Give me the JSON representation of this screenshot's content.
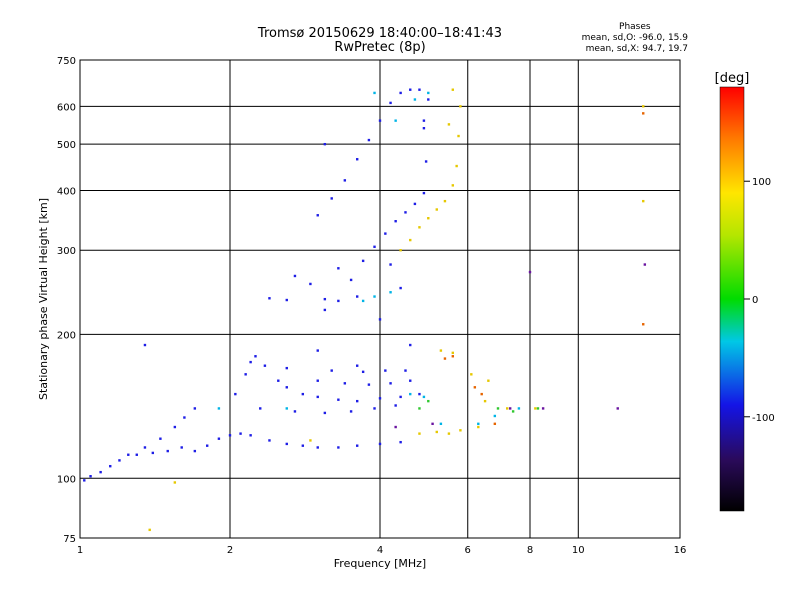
{
  "title": "Tromsø 20150629 18:40:00–18:41:43",
  "subtitle": "RwPretec (8p)",
  "phases": {
    "title": "Phases",
    "line_o": "mean, sd,O: -96.0, 15.9",
    "line_x": "mean, sd,X: 94.7, 19.7"
  },
  "colorbar": {
    "label": "[deg]",
    "ticks": [
      "100",
      "0",
      "-100"
    ],
    "min": -180,
    "max": 180
  },
  "chart_data": {
    "type": "scatter",
    "title": "Tromsø 20150629 18:40:00–18:41:43",
    "subtitle": "RwPretec (8p)",
    "xlabel": "Frequency [MHz]",
    "ylabel": "Stationary phase Virtual Height [km]",
    "xscale": "log",
    "yscale": "log",
    "xlim": [
      1,
      16
    ],
    "ylim": [
      75,
      750
    ],
    "xticks": [
      1,
      2,
      4,
      6,
      8,
      10,
      16
    ],
    "yticks": [
      75,
      100,
      200,
      300,
      400,
      500,
      600,
      750
    ],
    "grid": true,
    "color_scale": "phase [deg]",
    "series": [
      {
        "color": "#1e1ee6",
        "points": [
          [
            1.02,
            99
          ],
          [
            1.05,
            101
          ],
          [
            1.1,
            103
          ],
          [
            1.15,
            106
          ],
          [
            1.2,
            109
          ],
          [
            1.3,
            112
          ],
          [
            1.4,
            113
          ],
          [
            1.5,
            114
          ],
          [
            1.6,
            116
          ],
          [
            1.7,
            114
          ],
          [
            1.8,
            117
          ],
          [
            1.9,
            121
          ],
          [
            2.0,
            123
          ],
          [
            2.1,
            124
          ],
          [
            2.2,
            123
          ],
          [
            2.4,
            120
          ],
          [
            2.6,
            118
          ],
          [
            2.8,
            117
          ],
          [
            3.0,
            116
          ],
          [
            3.3,
            116
          ],
          [
            3.6,
            117
          ],
          [
            4.0,
            118
          ],
          [
            4.4,
            119
          ],
          [
            1.25,
            112
          ],
          [
            1.35,
            116
          ],
          [
            1.45,
            121
          ],
          [
            1.55,
            128
          ],
          [
            1.62,
            134
          ],
          [
            1.7,
            140
          ],
          [
            2.05,
            150
          ],
          [
            2.15,
            165
          ],
          [
            2.25,
            180
          ],
          [
            2.35,
            172
          ],
          [
            2.5,
            160
          ],
          [
            2.6,
            155
          ],
          [
            2.8,
            150
          ],
          [
            3.0,
            148
          ],
          [
            3.3,
            146
          ],
          [
            3.6,
            145
          ],
          [
            4.0,
            147
          ],
          [
            4.4,
            148
          ],
          [
            4.8,
            150
          ],
          [
            2.3,
            140
          ],
          [
            2.7,
            138
          ],
          [
            3.1,
            137
          ],
          [
            3.5,
            138
          ],
          [
            3.9,
            140
          ],
          [
            4.3,
            142
          ],
          [
            3.0,
            160
          ],
          [
            3.4,
            158
          ],
          [
            3.8,
            157
          ],
          [
            4.2,
            158
          ],
          [
            4.6,
            160
          ],
          [
            2.2,
            175
          ],
          [
            2.6,
            170
          ],
          [
            3.2,
            168
          ],
          [
            3.7,
            167
          ],
          [
            4.1,
            168
          ],
          [
            4.5,
            168
          ],
          [
            3.6,
            172
          ],
          [
            4.6,
            190
          ],
          [
            3.0,
            185
          ],
          [
            3.1,
            225
          ],
          [
            3.3,
            235
          ],
          [
            3.5,
            260
          ],
          [
            3.7,
            285
          ],
          [
            3.9,
            305
          ],
          [
            4.1,
            325
          ],
          [
            4.3,
            345
          ],
          [
            4.5,
            360
          ],
          [
            4.7,
            375
          ],
          [
            4.9,
            395
          ],
          [
            3.0,
            355
          ],
          [
            3.2,
            385
          ],
          [
            3.4,
            420
          ],
          [
            3.6,
            465
          ],
          [
            3.8,
            510
          ],
          [
            4.0,
            560
          ],
          [
            4.2,
            610
          ],
          [
            4.4,
            640
          ],
          [
            4.6,
            650
          ],
          [
            4.8,
            650
          ],
          [
            3.1,
            500
          ],
          [
            4.9,
            560
          ],
          [
            4.95,
            460
          ],
          [
            5.0,
            620
          ],
          [
            2.7,
            265
          ],
          [
            2.9,
            255
          ],
          [
            3.3,
            275
          ],
          [
            4.2,
            280
          ],
          [
            4.4,
            250
          ],
          [
            2.4,
            238
          ],
          [
            2.6,
            236
          ],
          [
            3.1,
            237
          ],
          [
            3.6,
            240
          ],
          [
            1.35,
            190
          ],
          [
            4.0,
            215
          ],
          [
            4.9,
            540
          ]
        ]
      },
      {
        "color": "#00b4e6",
        "points": [
          [
            3.7,
            235
          ],
          [
            3.9,
            240
          ],
          [
            4.2,
            245
          ],
          [
            4.6,
            150
          ],
          [
            4.9,
            148
          ],
          [
            5.3,
            130
          ],
          [
            6.3,
            130
          ],
          [
            6.8,
            135
          ],
          [
            7.6,
            140
          ],
          [
            3.9,
            640
          ],
          [
            4.3,
            560
          ],
          [
            4.7,
            620
          ],
          [
            5.0,
            640
          ],
          [
            1.9,
            140
          ],
          [
            2.6,
            140
          ]
        ]
      },
      {
        "color": "#e6c800",
        "points": [
          [
            4.4,
            300
          ],
          [
            4.6,
            315
          ],
          [
            4.8,
            335
          ],
          [
            5.0,
            350
          ],
          [
            5.2,
            365
          ],
          [
            5.4,
            380
          ],
          [
            5.6,
            410
          ],
          [
            5.7,
            450
          ],
          [
            5.75,
            520
          ],
          [
            5.8,
            600
          ],
          [
            5.6,
            650
          ],
          [
            5.5,
            550
          ],
          [
            5.3,
            185
          ],
          [
            5.6,
            183
          ],
          [
            5.2,
            125
          ],
          [
            5.5,
            124
          ],
          [
            4.8,
            124
          ],
          [
            5.8,
            126
          ],
          [
            6.3,
            128
          ],
          [
            6.6,
            160
          ],
          [
            6.1,
            165
          ],
          [
            6.5,
            145
          ],
          [
            7.2,
            140
          ],
          [
            8.2,
            140
          ],
          [
            13.5,
            600
          ],
          [
            13.5,
            380
          ],
          [
            1.38,
            78
          ],
          [
            1.55,
            98
          ],
          [
            2.9,
            120
          ]
        ]
      },
      {
        "color": "#e66400",
        "points": [
          [
            5.4,
            178
          ],
          [
            5.6,
            180
          ],
          [
            6.2,
            155
          ],
          [
            6.4,
            150
          ],
          [
            6.8,
            130
          ],
          [
            13.5,
            580
          ],
          [
            13.5,
            210
          ]
        ]
      },
      {
        "color": "#30c830",
        "points": [
          [
            4.8,
            140
          ],
          [
            5.0,
            145
          ],
          [
            6.9,
            140
          ],
          [
            7.4,
            138
          ],
          [
            8.3,
            140
          ]
        ]
      },
      {
        "color": "#6a14a0",
        "points": [
          [
            4.3,
            128
          ],
          [
            5.1,
            130
          ],
          [
            7.3,
            140
          ],
          [
            8.5,
            140
          ],
          [
            12.0,
            140
          ],
          [
            13.6,
            280
          ],
          [
            8.0,
            270
          ]
        ]
      }
    ]
  }
}
